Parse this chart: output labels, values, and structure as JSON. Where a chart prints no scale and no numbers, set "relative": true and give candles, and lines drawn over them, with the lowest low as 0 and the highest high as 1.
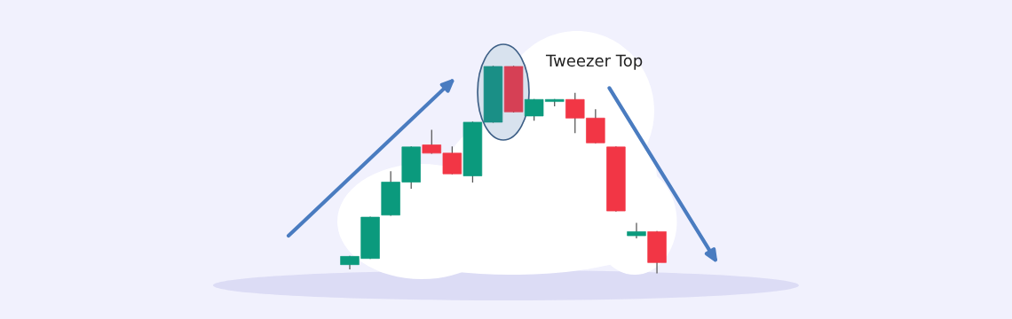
{
  "chart_data": {
    "type": "candlestick",
    "relative": true,
    "categories": [
      null,
      null,
      null,
      null,
      null,
      null,
      null,
      null,
      null,
      null,
      null,
      null,
      null,
      null,
      null,
      null
    ],
    "ohlc": [
      [
        0.04,
        0.08,
        0.02,
        0.08
      ],
      [
        0.07,
        0.27,
        0.07,
        0.27
      ],
      [
        0.28,
        0.49,
        0.28,
        0.44
      ],
      [
        0.44,
        0.61,
        0.41,
        0.61
      ],
      [
        0.62,
        0.69,
        0.58,
        0.58
      ],
      [
        0.58,
        0.61,
        0.48,
        0.48
      ],
      [
        0.47,
        0.73,
        0.44,
        0.73
      ],
      [
        0.73,
        1.0,
        0.73,
        1.0
      ],
      [
        1.0,
        1.0,
        0.78,
        0.78
      ],
      [
        0.76,
        0.84,
        0.74,
        0.84
      ],
      [
        0.83,
        0.84,
        0.81,
        0.84
      ],
      [
        0.84,
        0.87,
        0.68,
        0.75
      ],
      [
        0.75,
        0.79,
        0.63,
        0.63
      ],
      [
        0.61,
        0.61,
        0.3,
        0.3
      ],
      [
        0.18,
        0.24,
        0.17,
        0.2
      ],
      [
        0.2,
        0.2,
        0.0,
        0.05
      ]
    ],
    "colors": [
      "#0b9a7d",
      "#0b9a7d",
      "#0b9a7d",
      "#0b9a7d",
      "#f23645",
      "#f23645",
      "#0b9a7d",
      "#1a8f86",
      "#d64055",
      "#0b9a7d",
      "#0b9a7d",
      "#f23645",
      "#f23645",
      "#f23645",
      "#0b9a7d",
      "#f23645"
    ],
    "annotations": [
      "Tweezer Top"
    ]
  }
}
